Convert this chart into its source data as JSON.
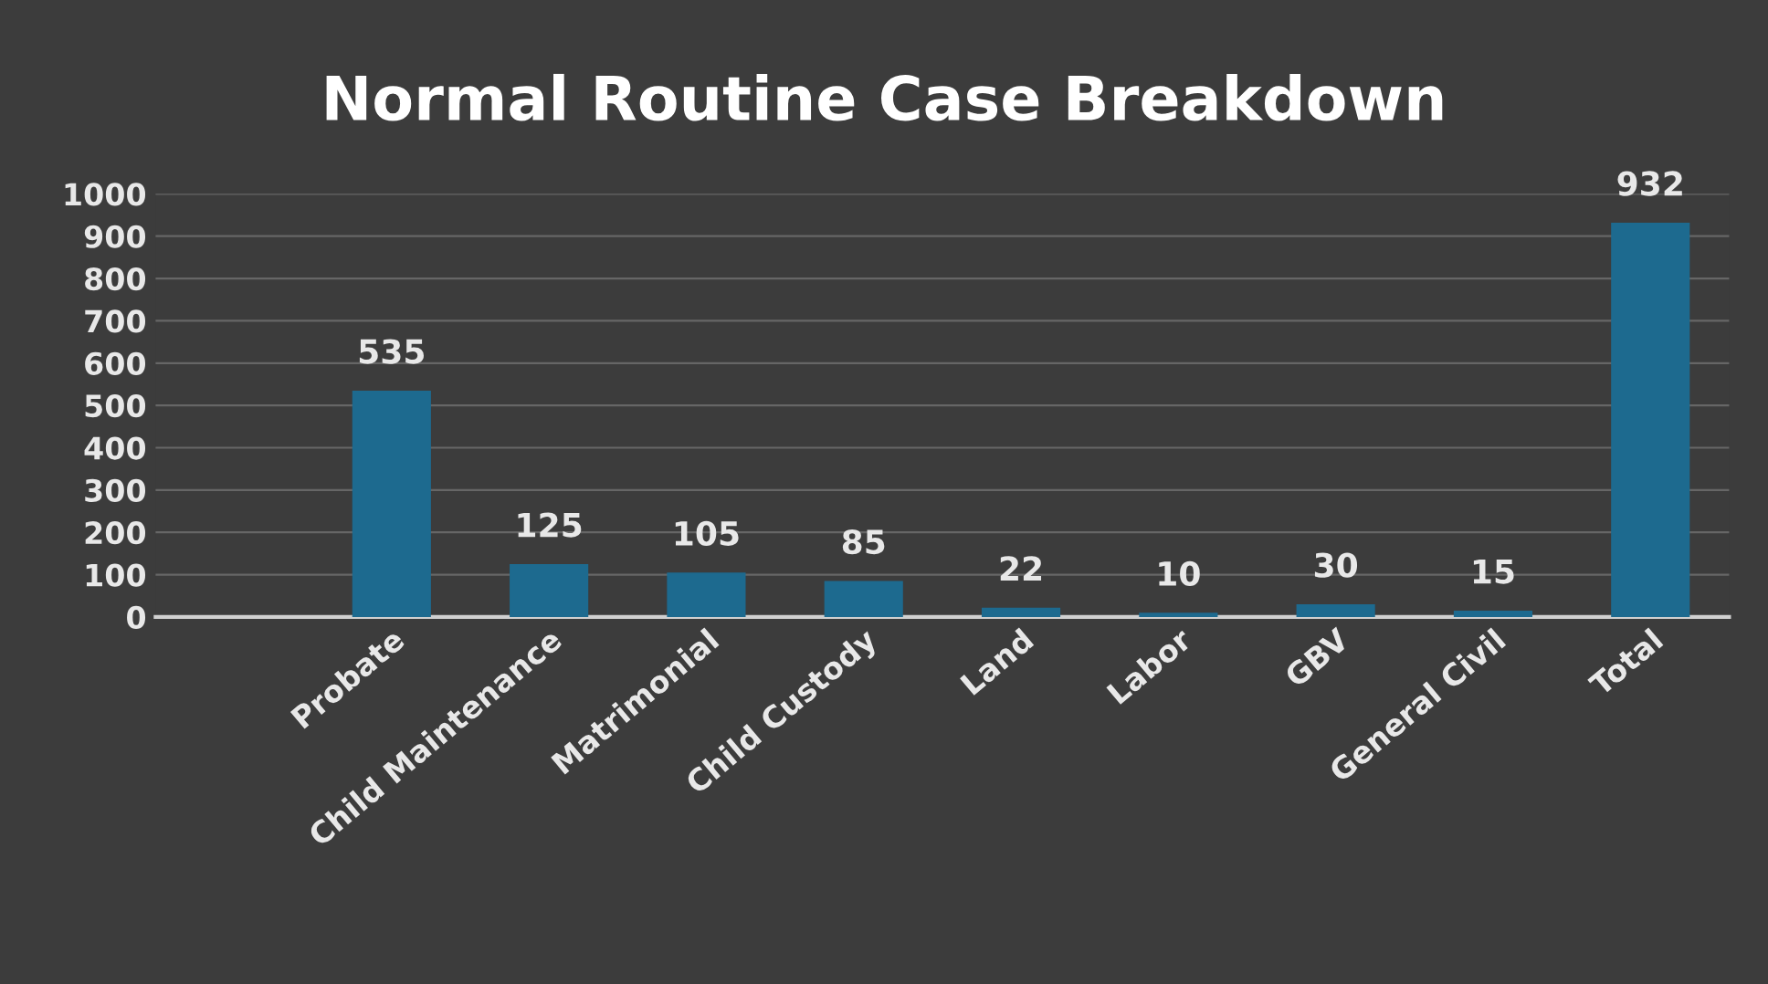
{
  "chart_data": {
    "type": "bar",
    "title": "Normal Routine Case Breakdown",
    "categories": [
      null,
      "Probate",
      "Child Maintenance",
      "Matrimonial",
      "Child Custody",
      "Land",
      "Labor",
      "GBV",
      "General Civil",
      "Total"
    ],
    "values": [
      null,
      535,
      125,
      105,
      85,
      22,
      10,
      30,
      15,
      932
    ],
    "color": "#1d6a8f",
    "ylim": [
      0,
      1000
    ],
    "yticks": [
      0,
      100,
      200,
      300,
      400,
      500,
      600,
      700,
      800,
      900,
      1000
    ],
    "grid": "y",
    "data_labels": true
  }
}
